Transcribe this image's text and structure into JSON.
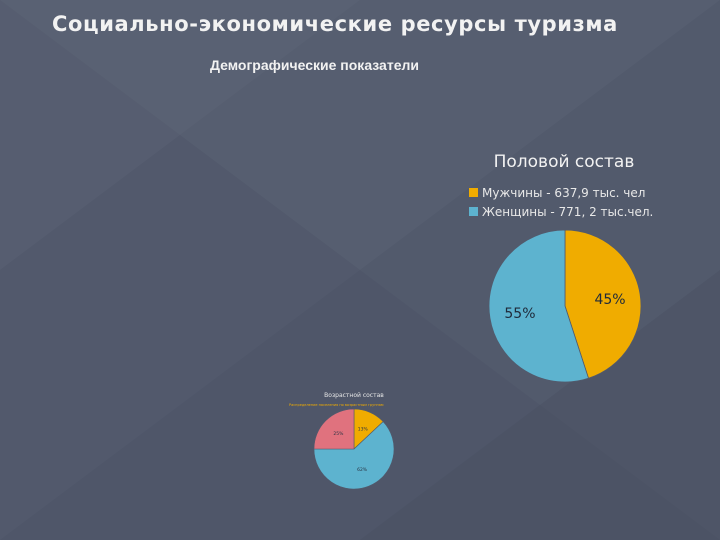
{
  "slide": {
    "title": "Социально-экономические ресурсы туризма",
    "subtitle": "Демографические показатели"
  },
  "chart_data": [
    {
      "type": "pie",
      "title": "Половой состав",
      "categories": [
        "Мужчины - 637,9 тыс. чел",
        "Женщины - 771, 2 тыс.чел."
      ],
      "values": [
        45,
        55
      ],
      "labels": [
        "45%",
        "55%"
      ],
      "colors": [
        "#f0ac00",
        "#5db3cf"
      ],
      "legend": "top"
    },
    {
      "type": "pie",
      "title": "Возрастной состав",
      "subtitle": "Распределение населения по возрастным группам",
      "values": [
        13,
        62,
        25
      ],
      "labels": [
        "13%",
        "62%",
        "25%"
      ],
      "colors": [
        "#f0ac00",
        "#5db3cf",
        "#e0727e"
      ]
    }
  ]
}
